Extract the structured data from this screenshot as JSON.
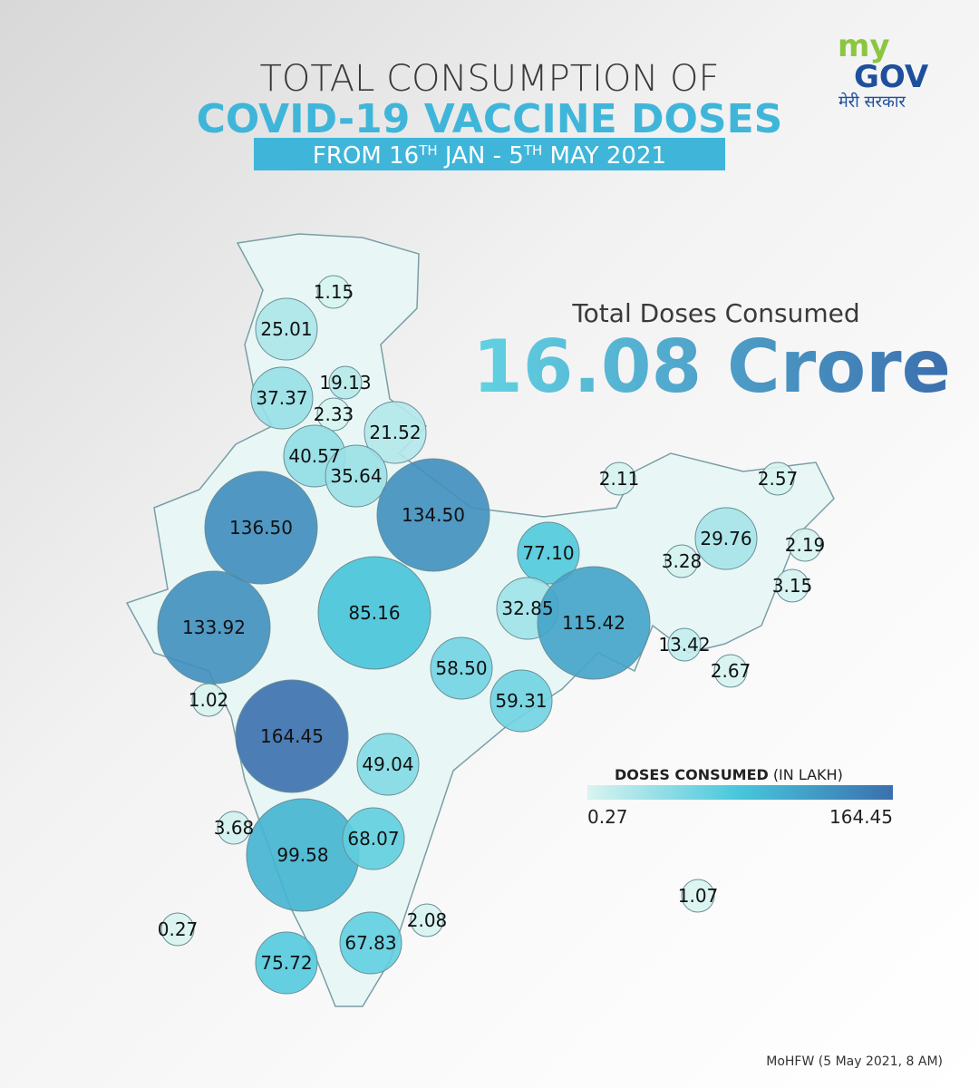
{
  "header": {
    "line1": "TOTAL CONSUMPTION OF",
    "line2": "COVID-19 VACCINE DOSES",
    "line3": [
      {
        "text": "FROM 16",
        "sup": false
      },
      {
        "text": "TH",
        "sup": true
      },
      {
        "text": " JAN - 5",
        "sup": false
      },
      {
        "text": "TH",
        "sup": true
      },
      {
        "text": " MAY 2021",
        "sup": false
      }
    ]
  },
  "logo": {
    "my": "my",
    "gov": "GOV",
    "tagline": "मेरी सरकार"
  },
  "total": {
    "label": "Total Doses Consumed",
    "value": "16.08 Crore"
  },
  "chart_data": {
    "type": "choropleth",
    "values": [
      1.15,
      25.01,
      19.13,
      37.37,
      2.33,
      21.52,
      40.57,
      35.64,
      136.5,
      134.5,
      77.1,
      85.16,
      133.92,
      32.85,
      115.42,
      58.5,
      59.31,
      1.02,
      164.45,
      49.04,
      3.68,
      99.58,
      68.07,
      2.08,
      0.27,
      67.83,
      75.72,
      2.11,
      2.57,
      29.76,
      2.19,
      3.28,
      3.15,
      13.42,
      2.67,
      1.07
    ],
    "value_labels": [
      "1.15",
      "25.01",
      "19.13",
      "37.37",
      "2.33",
      "21.52",
      "40.57",
      "35.64",
      "136.50",
      "134.50",
      "77.10",
      "85.16",
      "133.92",
      "32.85",
      "115.42",
      "58.50",
      "59.31",
      "1.02",
      "164.45",
      "49.04",
      "3.68",
      "99.58",
      "68.07",
      "2.08",
      "0.27",
      "67.83",
      "75.72",
      "2.11",
      "2.57",
      "29.76",
      "2.19",
      "3.28",
      "3.15",
      "13.42",
      "2.67",
      "1.07"
    ],
    "legend": {
      "title": "DOSES CONSUMED",
      "unit": "(IN LAKH)",
      "range": [
        0.27,
        164.45
      ],
      "colors": [
        "#d9f4f0",
        "#47c6dc",
        "#3b6fae"
      ]
    }
  },
  "source": "MoHFW (5 May 2021, 8 AM)"
}
